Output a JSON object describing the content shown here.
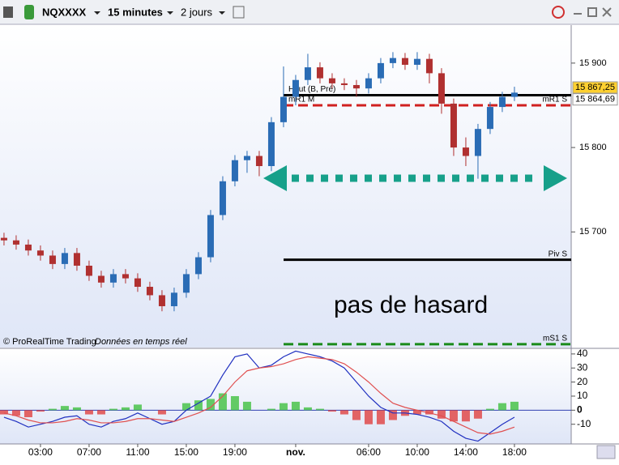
{
  "toolbar": {
    "symbol": "NQXXXX",
    "timeframe": "15 minutes",
    "range": "2 jours"
  },
  "chart_data": {
    "type": "candlestick",
    "x": [
      0,
      1,
      2,
      3,
      4,
      5,
      6,
      7,
      8,
      9,
      10,
      11,
      12,
      13,
      14,
      15,
      16,
      17,
      18,
      19,
      20,
      21,
      22,
      23,
      24,
      25,
      26,
      27,
      28,
      29,
      30,
      31,
      32,
      33,
      34,
      35,
      36,
      37,
      38,
      39,
      40,
      41,
      42
    ],
    "candles": [
      [
        15693,
        15699,
        15684,
        15690
      ],
      [
        15690,
        15696,
        15679,
        15685
      ],
      [
        15685,
        15691,
        15672,
        15678
      ],
      [
        15678,
        15684,
        15666,
        15672
      ],
      [
        15672,
        15678,
        15656,
        15662
      ],
      [
        15662,
        15681,
        15656,
        15675
      ],
      [
        15675,
        15681,
        15654,
        15660
      ],
      [
        15660,
        15666,
        15642,
        15648
      ],
      [
        15648,
        15654,
        15634,
        15640
      ],
      [
        15640,
        15656,
        15634,
        15650
      ],
      [
        15650,
        15656,
        15639,
        15645
      ],
      [
        15645,
        15651,
        15629,
        15635
      ],
      [
        15635,
        15641,
        15619,
        15625
      ],
      [
        15625,
        15631,
        15606,
        15612
      ],
      [
        15612,
        15634,
        15606,
        15628
      ],
      [
        15628,
        15656,
        15622,
        15650
      ],
      [
        15650,
        15676,
        15644,
        15670
      ],
      [
        15670,
        15726,
        15664,
        15720
      ],
      [
        15720,
        15766,
        15714,
        15760
      ],
      [
        15760,
        15791,
        15754,
        15785
      ],
      [
        15785,
        15796,
        15770,
        15790
      ],
      [
        15790,
        15796,
        15766,
        15778
      ],
      [
        15778,
        15836,
        15772,
        15830
      ],
      [
        15830,
        15896,
        15824,
        15860
      ],
      [
        15860,
        15886,
        15850,
        15880
      ],
      [
        15880,
        15911,
        15874,
        15895
      ],
      [
        15895,
        15901,
        15876,
        15882
      ],
      [
        15882,
        15888,
        15870,
        15876
      ],
      [
        15876,
        15882,
        15868,
        15874
      ],
      [
        15874,
        15880,
        15860,
        15870
      ],
      [
        15870,
        15888,
        15864,
        15882
      ],
      [
        15882,
        15906,
        15876,
        15900
      ],
      [
        15900,
        15913,
        15894,
        15906
      ],
      [
        15906,
        15912,
        15892,
        15898
      ],
      [
        15898,
        15913,
        15892,
        15905
      ],
      [
        15905,
        15911,
        15876,
        15888
      ],
      [
        15888,
        15894,
        15840,
        15852
      ],
      [
        15852,
        15858,
        15790,
        15800
      ],
      [
        15800,
        15812,
        15778,
        15790
      ],
      [
        15790,
        15828,
        15763,
        15822
      ],
      [
        15822,
        15854,
        15816,
        15848
      ],
      [
        15848,
        15866,
        15842,
        15860
      ],
      [
        15860,
        15872,
        15855,
        15865
      ]
    ],
    "up_color": "#2a6cb5",
    "down_color": "#b03030",
    "xlim": [
      -0.33,
      46.67
    ],
    "ylim": [
      15564,
      15945
    ],
    "yticks": [
      {
        "value": 15900,
        "label": "15 900"
      },
      {
        "value": 15800,
        "label": "15 800"
      },
      {
        "value": 15700,
        "label": "15 700"
      }
    ],
    "xticks": [
      {
        "value": 3,
        "label": "03:00"
      },
      {
        "value": 7,
        "label": "07:00"
      },
      {
        "value": 11,
        "label": "11:00"
      },
      {
        "value": 15,
        "label": "15:00"
      },
      {
        "value": 19,
        "label": "19:00"
      },
      {
        "value": 24,
        "label": "nov."
      },
      {
        "value": 30,
        "label": "06:00"
      },
      {
        "value": 34,
        "label": "10:00"
      },
      {
        "value": 38,
        "label": "14:00"
      },
      {
        "value": 42,
        "label": "18:00"
      }
    ],
    "levels": [
      {
        "left_label": "Haut (B, Pré)",
        "value": 15862,
        "color": "#000000",
        "dash": "solid"
      },
      {
        "left_label": "mR1 M",
        "right_label": "mR1 S",
        "value": 15850,
        "color": "#d02020",
        "dash": "dashed"
      },
      {
        "right_label": "Piv S",
        "value": 15667,
        "color": "#000000",
        "dash": "solid"
      },
      {
        "right_label": "mS1 S",
        "value": 15567,
        "color": "#1a8a1a",
        "dash": "dashed"
      }
    ],
    "price_tags": [
      {
        "value": 15867.25,
        "label": "15 867,25",
        "color": "#ffd030"
      },
      {
        "value": 15864.69,
        "label": "15 864,69",
        "color": "#ffffff"
      }
    ],
    "annotation": "pas de hasard",
    "source": "© ProRealTime Trading",
    "source_note": "Données en temps réel",
    "indicator": {
      "ylim": [
        -24,
        43.4
      ],
      "yticks": [
        40,
        30,
        20,
        10,
        0,
        -10
      ],
      "series": [
        {
          "color": "#2030c0",
          "values": [
            -5,
            -8,
            -12,
            -10,
            -8,
            -5,
            -4,
            -10,
            -12,
            -8,
            -6,
            -2,
            -6,
            -10,
            -8,
            0,
            5,
            10,
            25,
            38,
            40,
            30,
            32,
            38,
            42,
            40,
            38,
            35,
            30,
            20,
            10,
            2,
            -2,
            -2,
            -3,
            -5,
            -8,
            -15,
            -20,
            -22,
            -16,
            -10,
            -5
          ]
        },
        {
          "color": "#e05050",
          "values": [
            -2,
            -4,
            -7,
            -9,
            -9,
            -8,
            -6,
            -7,
            -9,
            -9,
            -8,
            -6,
            -6,
            -7,
            -8,
            -5,
            -2,
            2,
            10,
            20,
            28,
            30,
            31,
            33,
            36,
            38,
            37,
            36,
            33,
            27,
            20,
            12,
            5,
            2,
            0,
            -2,
            -4,
            -8,
            -12,
            -16,
            -17,
            -15,
            -12
          ]
        }
      ],
      "histogram": [
        -3,
        -4,
        -5,
        -1,
        1,
        3,
        2,
        -3,
        -3,
        1,
        2,
        4,
        0,
        -3,
        0,
        5,
        7,
        8,
        12,
        10,
        6,
        0,
        1,
        5,
        6,
        2,
        1,
        -1,
        -3,
        -7,
        -10,
        -10,
        -7,
        -4,
        -3,
        -3,
        -6,
        -8,
        -8,
        -6,
        1,
        5,
        6
      ],
      "hist_up": "#40c040",
      "hist_down": "#e04040"
    }
  }
}
